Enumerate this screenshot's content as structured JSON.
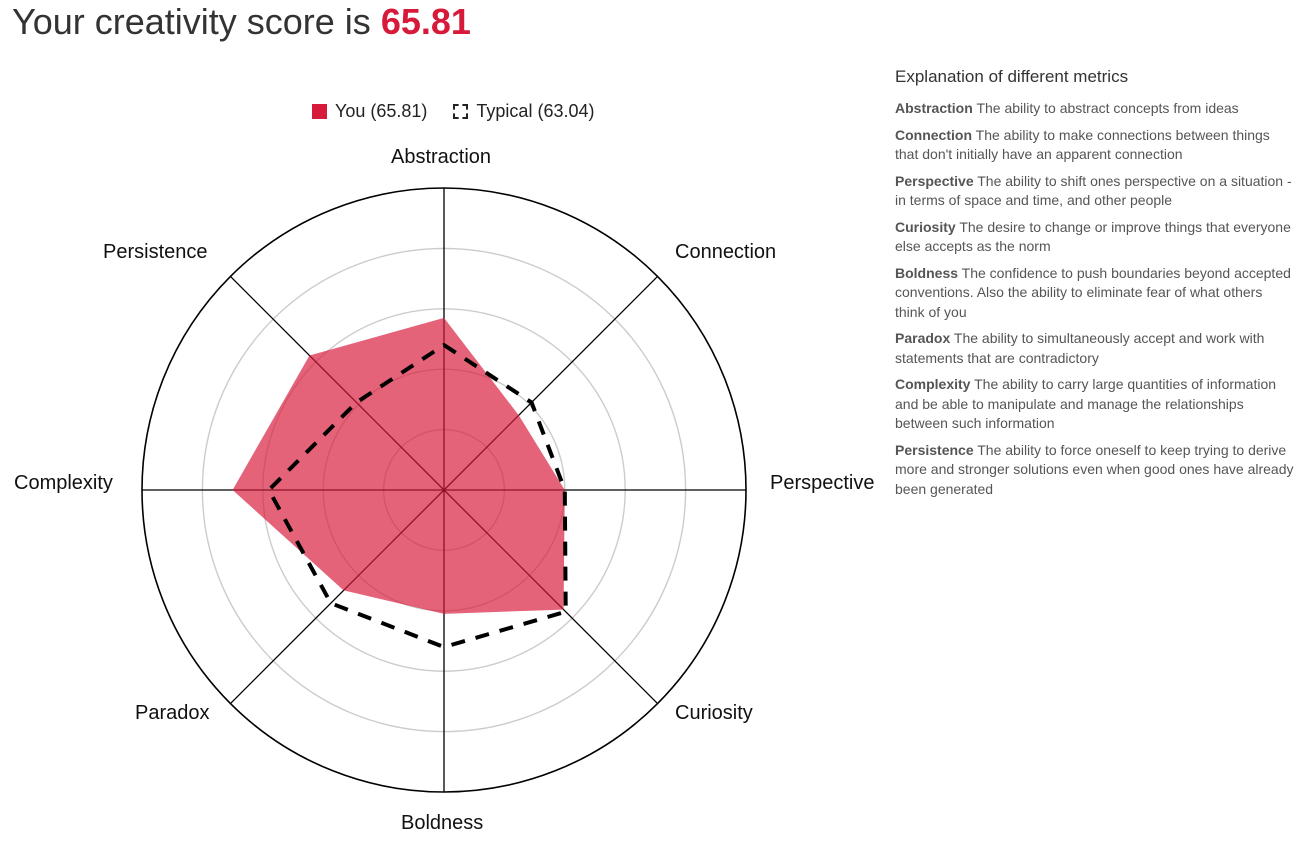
{
  "header": {
    "title_prefix": "Your creativity score is ",
    "score": "65.81"
  },
  "legend": {
    "you": "You (65.81)",
    "typical": "Typical (63.04)"
  },
  "explanations": {
    "title": "Explanation of different metrics",
    "items": [
      {
        "name": "Abstraction",
        "text": "The ability to abstract concepts from ideas"
      },
      {
        "name": "Connection",
        "text": "The ability to make connections between things that don't initially have an apparent connection"
      },
      {
        "name": "Perspective",
        "text": "The ability to shift ones perspective on a situation - in terms of space and time, and other people"
      },
      {
        "name": "Curiosity",
        "text": "The desire to change or improve things that everyone else accepts as the norm"
      },
      {
        "name": "Boldness",
        "text": "The confidence to push boundaries beyond accepted conventions. Also the ability to eliminate fear of what others think of you"
      },
      {
        "name": "Paradox",
        "text": "The ability to simultaneously accept and work with statements that are contradictory"
      },
      {
        "name": "Complexity",
        "text": "The ability to carry large quantities of information and be able to manipulate and manage the relationships between such information"
      },
      {
        "name": "Persistence",
        "text": "The ability to force oneself to keep trying to derive more and stronger solutions even when good ones have already been generated"
      }
    ]
  },
  "colors": {
    "accent": "#d7193a",
    "you_fill": "#e0404f",
    "typical_stroke": "#000000",
    "grid": "#cccccc",
    "axis": "#000000"
  },
  "chart_data": {
    "type": "radar",
    "title": "Your creativity score is 65.81",
    "categories": [
      "Abstraction",
      "Connection",
      "Perspective",
      "Curiosity",
      "Boldness",
      "Paradox",
      "Complexity",
      "Persistence"
    ],
    "series": [
      {
        "name": "You (65.81)",
        "values": [
          57,
          35,
          40,
          56,
          41,
          47,
          70,
          63
        ],
        "style": "filled red"
      },
      {
        "name": "Typical (63.04)",
        "values": [
          48,
          41,
          40,
          57,
          52,
          53,
          58,
          41
        ],
        "style": "dashed black line"
      }
    ],
    "rlim": [
      0,
      100
    ],
    "rings": [
      20,
      40,
      60,
      80,
      100
    ],
    "grid": true,
    "legend_position": "top"
  }
}
